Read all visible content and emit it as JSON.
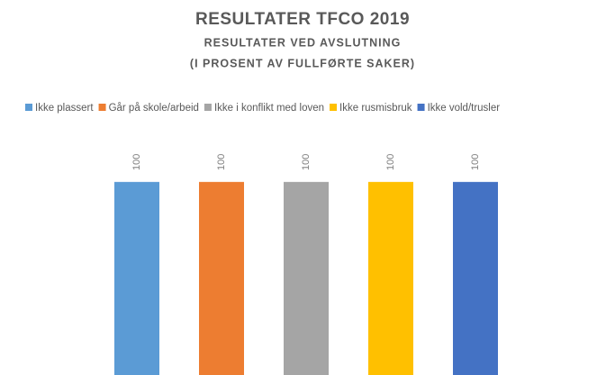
{
  "chart_data": {
    "type": "bar",
    "title": "RESULTATER TFCO 2019",
    "subtitle": [
      "RESULTATER VED AVSLUTNING",
      "(I PROSENT AV FULLFØRTE SAKER)"
    ],
    "series": [
      {
        "name": "Ikke plassert",
        "color": "#5b9bd5",
        "values": [
          100
        ]
      },
      {
        "name": "Går på skole/arbeid",
        "color": "#ed7d31",
        "values": [
          100
        ]
      },
      {
        "name": "Ikke i konflikt med loven",
        "color": "#a5a5a5",
        "values": [
          100
        ]
      },
      {
        "name": "Ikke rusmisbruk",
        "color": "#ffc000",
        "values": [
          100
        ]
      },
      {
        "name": "Ikke vold/trusler",
        "color": "#4472c4",
        "values": [
          100
        ]
      }
    ],
    "ylim": [
      0,
      120
    ],
    "legend": "top"
  }
}
